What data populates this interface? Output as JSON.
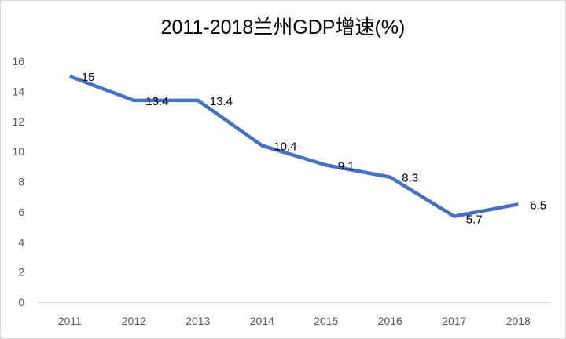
{
  "chart_data": {
    "type": "line",
    "title": "2011-2018兰州GDP增速(%)",
    "categories": [
      "2011",
      "2012",
      "2013",
      "2014",
      "2015",
      "2016",
      "2017",
      "2018"
    ],
    "values": [
      15,
      13.4,
      13.4,
      10.4,
      9.1,
      8.3,
      5.7,
      6.5
    ],
    "data_labels": [
      "15",
      "13.4",
      "13.4",
      "10.4",
      "9.1",
      "8.3",
      "5.7",
      "6.5"
    ],
    "xlabel": "",
    "ylabel": "",
    "ylim": [
      0,
      16
    ],
    "yticks": [
      "0",
      "2",
      "4",
      "6",
      "8",
      "10",
      "12",
      "14",
      "16"
    ],
    "grid": false,
    "legend": "none",
    "line_color": "#4472C4"
  }
}
